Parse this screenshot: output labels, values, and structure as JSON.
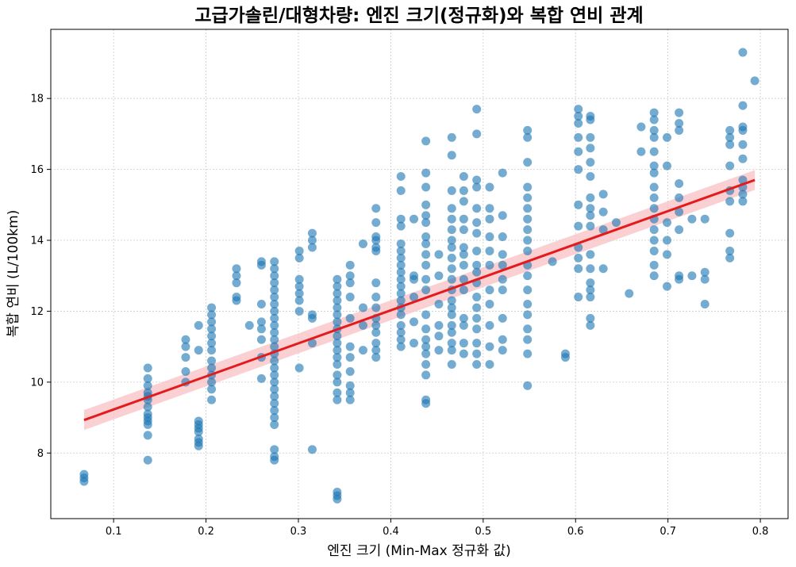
{
  "chart_data": {
    "type": "scatter",
    "title": "고급가솔린/대형차량: 엔진 크기(정규화)와 복합 연비 관계",
    "xlabel": "엔진 크기 (Min-Max 정규화 값)",
    "ylabel": "복합 연비 (L/100km)",
    "xlim": [
      0.032,
      0.83
    ],
    "ylim": [
      6.15,
      19.95
    ],
    "xticks": [
      0.1,
      0.2,
      0.3,
      0.4,
      0.5,
      0.6,
      0.7,
      0.8
    ],
    "yticks": [
      8,
      10,
      12,
      14,
      16,
      18
    ],
    "grid": true,
    "point_color": "#1f77b4",
    "line_color": "#e41a1c",
    "band_color": "#f8c0c4",
    "regression": {
      "x": [
        0.068,
        0.794
      ],
      "y": [
        8.93,
        15.7
      ],
      "ci_halfwidth": [
        0.28,
        0.28
      ]
    },
    "points": [
      [
        0.068,
        7.4
      ],
      [
        0.068,
        7.3
      ],
      [
        0.068,
        7.2
      ],
      [
        0.137,
        10.4
      ],
      [
        0.137,
        10.1
      ],
      [
        0.137,
        9.9
      ],
      [
        0.137,
        9.7
      ],
      [
        0.137,
        9.6
      ],
      [
        0.137,
        9.5
      ],
      [
        0.137,
        9.3
      ],
      [
        0.137,
        9.1
      ],
      [
        0.137,
        9.0
      ],
      [
        0.137,
        8.9
      ],
      [
        0.137,
        8.8
      ],
      [
        0.137,
        8.5
      ],
      [
        0.137,
        7.8
      ],
      [
        0.178,
        11.2
      ],
      [
        0.178,
        11.0
      ],
      [
        0.178,
        10.7
      ],
      [
        0.178,
        10.3
      ],
      [
        0.178,
        10.0
      ],
      [
        0.192,
        11.6
      ],
      [
        0.192,
        10.9
      ],
      [
        0.192,
        8.9
      ],
      [
        0.192,
        8.8
      ],
      [
        0.192,
        8.7
      ],
      [
        0.192,
        8.6
      ],
      [
        0.192,
        8.4
      ],
      [
        0.192,
        8.3
      ],
      [
        0.192,
        8.2
      ],
      [
        0.206,
        12.1
      ],
      [
        0.206,
        11.9
      ],
      [
        0.206,
        11.7
      ],
      [
        0.206,
        11.5
      ],
      [
        0.206,
        11.3
      ],
      [
        0.206,
        11.1
      ],
      [
        0.206,
        10.9
      ],
      [
        0.206,
        10.6
      ],
      [
        0.206,
        10.4
      ],
      [
        0.206,
        10.2
      ],
      [
        0.206,
        10.0
      ],
      [
        0.206,
        9.8
      ],
      [
        0.206,
        9.5
      ],
      [
        0.233,
        13.2
      ],
      [
        0.233,
        13.0
      ],
      [
        0.233,
        12.8
      ],
      [
        0.233,
        12.4
      ],
      [
        0.233,
        12.3
      ],
      [
        0.247,
        11.6
      ],
      [
        0.26,
        13.4
      ],
      [
        0.26,
        13.3
      ],
      [
        0.26,
        12.2
      ],
      [
        0.26,
        11.7
      ],
      [
        0.26,
        11.5
      ],
      [
        0.26,
        11.2
      ],
      [
        0.26,
        10.7
      ],
      [
        0.26,
        10.1
      ],
      [
        0.274,
        13.4
      ],
      [
        0.274,
        13.2
      ],
      [
        0.274,
        13.0
      ],
      [
        0.274,
        12.8
      ],
      [
        0.274,
        12.6
      ],
      [
        0.274,
        12.4
      ],
      [
        0.274,
        12.2
      ],
      [
        0.274,
        12.0
      ],
      [
        0.274,
        11.8
      ],
      [
        0.274,
        11.6
      ],
      [
        0.274,
        11.4
      ],
      [
        0.274,
        11.2
      ],
      [
        0.274,
        11.0
      ],
      [
        0.274,
        10.8
      ],
      [
        0.274,
        10.6
      ],
      [
        0.274,
        10.4
      ],
      [
        0.274,
        10.2
      ],
      [
        0.274,
        10.0
      ],
      [
        0.274,
        9.8
      ],
      [
        0.274,
        9.6
      ],
      [
        0.274,
        9.4
      ],
      [
        0.274,
        9.2
      ],
      [
        0.274,
        9.0
      ],
      [
        0.274,
        8.8
      ],
      [
        0.274,
        8.1
      ],
      [
        0.274,
        7.9
      ],
      [
        0.274,
        7.8
      ],
      [
        0.301,
        13.7
      ],
      [
        0.301,
        13.5
      ],
      [
        0.301,
        12.9
      ],
      [
        0.301,
        12.7
      ],
      [
        0.301,
        12.5
      ],
      [
        0.301,
        12.3
      ],
      [
        0.301,
        12.0
      ],
      [
        0.301,
        10.4
      ],
      [
        0.315,
        14.2
      ],
      [
        0.315,
        14.0
      ],
      [
        0.315,
        13.8
      ],
      [
        0.315,
        11.9
      ],
      [
        0.315,
        11.8
      ],
      [
        0.315,
        11.1
      ],
      [
        0.315,
        8.1
      ],
      [
        0.342,
        12.9
      ],
      [
        0.342,
        12.7
      ],
      [
        0.342,
        12.5
      ],
      [
        0.342,
        12.3
      ],
      [
        0.342,
        12.1
      ],
      [
        0.342,
        11.9
      ],
      [
        0.342,
        11.7
      ],
      [
        0.342,
        11.5
      ],
      [
        0.342,
        11.3
      ],
      [
        0.342,
        11.1
      ],
      [
        0.342,
        10.9
      ],
      [
        0.342,
        10.7
      ],
      [
        0.342,
        10.5
      ],
      [
        0.342,
        10.2
      ],
      [
        0.342,
        10.0
      ],
      [
        0.342,
        9.7
      ],
      [
        0.342,
        9.5
      ],
      [
        0.342,
        6.9
      ],
      [
        0.342,
        6.8
      ],
      [
        0.342,
        6.7
      ],
      [
        0.356,
        13.3
      ],
      [
        0.356,
        13.0
      ],
      [
        0.356,
        12.8
      ],
      [
        0.356,
        12.4
      ],
      [
        0.356,
        11.8
      ],
      [
        0.356,
        11.0
      ],
      [
        0.356,
        10.7
      ],
      [
        0.356,
        10.3
      ],
      [
        0.356,
        9.9
      ],
      [
        0.356,
        9.7
      ],
      [
        0.356,
        9.5
      ],
      [
        0.37,
        13.9
      ],
      [
        0.37,
        12.1
      ],
      [
        0.37,
        11.6
      ],
      [
        0.37,
        10.9
      ],
      [
        0.384,
        14.9
      ],
      [
        0.384,
        14.5
      ],
      [
        0.384,
        14.1
      ],
      [
        0.384,
        14.0
      ],
      [
        0.384,
        13.8
      ],
      [
        0.384,
        13.7
      ],
      [
        0.384,
        12.8
      ],
      [
        0.384,
        12.4
      ],
      [
        0.384,
        12.1
      ],
      [
        0.384,
        11.8
      ],
      [
        0.384,
        11.6
      ],
      [
        0.384,
        11.4
      ],
      [
        0.384,
        11.1
      ],
      [
        0.384,
        10.9
      ],
      [
        0.384,
        10.7
      ],
      [
        0.411,
        15.8
      ],
      [
        0.411,
        15.4
      ],
      [
        0.411,
        14.6
      ],
      [
        0.411,
        14.4
      ],
      [
        0.411,
        13.9
      ],
      [
        0.411,
        13.7
      ],
      [
        0.411,
        13.5
      ],
      [
        0.411,
        13.3
      ],
      [
        0.411,
        13.1
      ],
      [
        0.411,
        12.9
      ],
      [
        0.411,
        12.7
      ],
      [
        0.411,
        12.5
      ],
      [
        0.411,
        12.3
      ],
      [
        0.411,
        12.1
      ],
      [
        0.411,
        11.9
      ],
      [
        0.411,
        11.6
      ],
      [
        0.411,
        11.4
      ],
      [
        0.411,
        11.2
      ],
      [
        0.411,
        11.0
      ],
      [
        0.425,
        14.6
      ],
      [
        0.425,
        13.0
      ],
      [
        0.425,
        12.9
      ],
      [
        0.425,
        12.4
      ],
      [
        0.425,
        11.7
      ],
      [
        0.425,
        11.1
      ],
      [
        0.438,
        16.8
      ],
      [
        0.438,
        15.9
      ],
      [
        0.438,
        15.5
      ],
      [
        0.438,
        15.0
      ],
      [
        0.438,
        14.7
      ],
      [
        0.438,
        14.5
      ],
      [
        0.438,
        14.1
      ],
      [
        0.438,
        13.9
      ],
      [
        0.438,
        13.6
      ],
      [
        0.438,
        13.3
      ],
      [
        0.438,
        12.9
      ],
      [
        0.438,
        12.6
      ],
      [
        0.438,
        11.9
      ],
      [
        0.438,
        11.5
      ],
      [
        0.438,
        11.2
      ],
      [
        0.438,
        11.0
      ],
      [
        0.438,
        10.8
      ],
      [
        0.438,
        10.5
      ],
      [
        0.438,
        10.2
      ],
      [
        0.438,
        9.5
      ],
      [
        0.438,
        9.4
      ],
      [
        0.452,
        13.6
      ],
      [
        0.452,
        13.0
      ],
      [
        0.452,
        12.2
      ],
      [
        0.452,
        11.6
      ],
      [
        0.452,
        11.3
      ],
      [
        0.452,
        10.9
      ],
      [
        0.466,
        16.9
      ],
      [
        0.466,
        16.4
      ],
      [
        0.466,
        15.4
      ],
      [
        0.466,
        14.9
      ],
      [
        0.466,
        14.6
      ],
      [
        0.466,
        14.3
      ],
      [
        0.466,
        14.0
      ],
      [
        0.466,
        13.8
      ],
      [
        0.466,
        13.5
      ],
      [
        0.466,
        13.2
      ],
      [
        0.466,
        12.9
      ],
      [
        0.466,
        12.6
      ],
      [
        0.466,
        12.3
      ],
      [
        0.466,
        12.1
      ],
      [
        0.466,
        11.9
      ],
      [
        0.466,
        11.6
      ],
      [
        0.466,
        11.4
      ],
      [
        0.466,
        11.1
      ],
      [
        0.466,
        10.9
      ],
      [
        0.466,
        10.5
      ],
      [
        0.479,
        15.8
      ],
      [
        0.479,
        15.4
      ],
      [
        0.479,
        15.1
      ],
      [
        0.479,
        14.6
      ],
      [
        0.479,
        14.3
      ],
      [
        0.479,
        13.8
      ],
      [
        0.479,
        13.6
      ],
      [
        0.479,
        13.3
      ],
      [
        0.479,
        12.9
      ],
      [
        0.479,
        12.6
      ],
      [
        0.479,
        11.8
      ],
      [
        0.479,
        11.6
      ],
      [
        0.479,
        11.1
      ],
      [
        0.479,
        10.8
      ],
      [
        0.493,
        17.7
      ],
      [
        0.493,
        17.0
      ],
      [
        0.493,
        15.7
      ],
      [
        0.493,
        15.5
      ],
      [
        0.493,
        14.9
      ],
      [
        0.493,
        14.5
      ],
      [
        0.493,
        14.2
      ],
      [
        0.493,
        13.7
      ],
      [
        0.493,
        13.3
      ],
      [
        0.493,
        13.1
      ],
      [
        0.493,
        12.8
      ],
      [
        0.493,
        12.4
      ],
      [
        0.493,
        12.1
      ],
      [
        0.493,
        11.8
      ],
      [
        0.493,
        11.5
      ],
      [
        0.493,
        11.1
      ],
      [
        0.493,
        10.8
      ],
      [
        0.493,
        10.5
      ],
      [
        0.507,
        15.5
      ],
      [
        0.507,
        14.9
      ],
      [
        0.507,
        14.6
      ],
      [
        0.507,
        14.1
      ],
      [
        0.507,
        13.7
      ],
      [
        0.507,
        13.3
      ],
      [
        0.507,
        12.6
      ],
      [
        0.507,
        12.2
      ],
      [
        0.507,
        11.6
      ],
      [
        0.507,
        11.0
      ],
      [
        0.507,
        10.5
      ],
      [
        0.521,
        15.9
      ],
      [
        0.521,
        14.7
      ],
      [
        0.521,
        14.1
      ],
      [
        0.521,
        13.6
      ],
      [
        0.521,
        13.3
      ],
      [
        0.521,
        12.9
      ],
      [
        0.521,
        12.6
      ],
      [
        0.521,
        11.8
      ],
      [
        0.521,
        11.2
      ],
      [
        0.521,
        10.9
      ],
      [
        0.548,
        17.1
      ],
      [
        0.548,
        16.9
      ],
      [
        0.548,
        16.2
      ],
      [
        0.548,
        15.5
      ],
      [
        0.548,
        15.2
      ],
      [
        0.548,
        14.9
      ],
      [
        0.548,
        14.6
      ],
      [
        0.548,
        14.3
      ],
      [
        0.548,
        14.0
      ],
      [
        0.548,
        13.7
      ],
      [
        0.548,
        13.3
      ],
      [
        0.548,
        13.0
      ],
      [
        0.548,
        12.6
      ],
      [
        0.548,
        12.2
      ],
      [
        0.548,
        11.9
      ],
      [
        0.548,
        11.5
      ],
      [
        0.548,
        11.2
      ],
      [
        0.548,
        10.8
      ],
      [
        0.548,
        9.9
      ],
      [
        0.575,
        13.4
      ],
      [
        0.589,
        10.8
      ],
      [
        0.589,
        10.7
      ],
      [
        0.603,
        17.7
      ],
      [
        0.603,
        17.5
      ],
      [
        0.603,
        17.3
      ],
      [
        0.603,
        16.9
      ],
      [
        0.603,
        16.5
      ],
      [
        0.603,
        16.0
      ],
      [
        0.603,
        15.0
      ],
      [
        0.603,
        14.4
      ],
      [
        0.603,
        13.8
      ],
      [
        0.603,
        13.5
      ],
      [
        0.603,
        13.2
      ],
      [
        0.603,
        12.4
      ],
      [
        0.616,
        17.5
      ],
      [
        0.616,
        17.4
      ],
      [
        0.616,
        16.9
      ],
      [
        0.616,
        16.6
      ],
      [
        0.616,
        16.2
      ],
      [
        0.616,
        15.8
      ],
      [
        0.616,
        15.2
      ],
      [
        0.616,
        14.9
      ],
      [
        0.616,
        14.7
      ],
      [
        0.616,
        14.4
      ],
      [
        0.616,
        13.6
      ],
      [
        0.616,
        13.2
      ],
      [
        0.616,
        12.8
      ],
      [
        0.616,
        12.6
      ],
      [
        0.616,
        12.4
      ],
      [
        0.616,
        11.8
      ],
      [
        0.616,
        11.6
      ],
      [
        0.63,
        15.3
      ],
      [
        0.63,
        14.8
      ],
      [
        0.63,
        14.3
      ],
      [
        0.63,
        13.2
      ],
      [
        0.644,
        14.5
      ],
      [
        0.658,
        12.5
      ],
      [
        0.671,
        17.2
      ],
      [
        0.671,
        16.5
      ],
      [
        0.685,
        17.6
      ],
      [
        0.685,
        17.4
      ],
      [
        0.685,
        17.1
      ],
      [
        0.685,
        16.9
      ],
      [
        0.685,
        16.5
      ],
      [
        0.685,
        16.1
      ],
      [
        0.685,
        15.9
      ],
      [
        0.685,
        15.5
      ],
      [
        0.685,
        15.2
      ],
      [
        0.685,
        14.9
      ],
      [
        0.685,
        14.6
      ],
      [
        0.685,
        14.3
      ],
      [
        0.685,
        14.0
      ],
      [
        0.685,
        13.7
      ],
      [
        0.685,
        13.3
      ],
      [
        0.685,
        13.0
      ],
      [
        0.699,
        16.9
      ],
      [
        0.699,
        16.1
      ],
      [
        0.699,
        14.5
      ],
      [
        0.699,
        14.0
      ],
      [
        0.699,
        13.6
      ],
      [
        0.699,
        12.7
      ],
      [
        0.712,
        17.6
      ],
      [
        0.712,
        17.3
      ],
      [
        0.712,
        17.1
      ],
      [
        0.712,
        15.6
      ],
      [
        0.712,
        15.2
      ],
      [
        0.712,
        14.8
      ],
      [
        0.712,
        14.3
      ],
      [
        0.712,
        13.0
      ],
      [
        0.712,
        12.9
      ],
      [
        0.726,
        14.6
      ],
      [
        0.726,
        13.0
      ],
      [
        0.74,
        14.6
      ],
      [
        0.74,
        13.1
      ],
      [
        0.74,
        12.9
      ],
      [
        0.74,
        12.2
      ],
      [
        0.767,
        17.1
      ],
      [
        0.767,
        16.9
      ],
      [
        0.767,
        16.7
      ],
      [
        0.767,
        16.1
      ],
      [
        0.767,
        15.4
      ],
      [
        0.767,
        15.1
      ],
      [
        0.767,
        14.2
      ],
      [
        0.767,
        13.7
      ],
      [
        0.767,
        13.5
      ],
      [
        0.781,
        19.3
      ],
      [
        0.781,
        17.8
      ],
      [
        0.781,
        17.2
      ],
      [
        0.781,
        17.1
      ],
      [
        0.781,
        16.7
      ],
      [
        0.781,
        16.3
      ],
      [
        0.781,
        15.7
      ],
      [
        0.781,
        15.5
      ],
      [
        0.781,
        15.3
      ],
      [
        0.781,
        15.1
      ],
      [
        0.794,
        18.5
      ]
    ]
  }
}
